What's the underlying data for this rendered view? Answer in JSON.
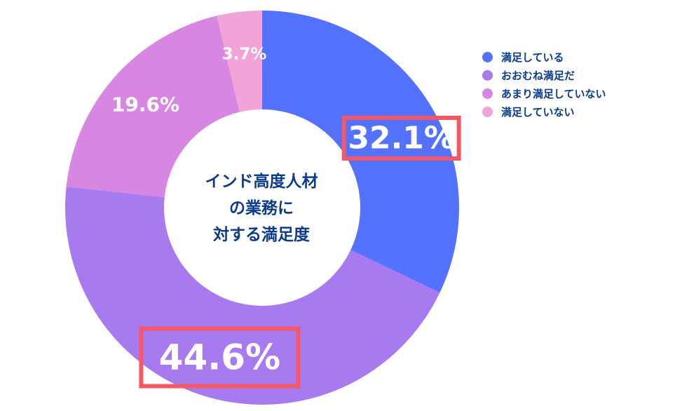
{
  "chart_data": {
    "type": "pie",
    "variant": "donut",
    "center_title": [
      "インド高度人材",
      "の業務に",
      "対する満足度"
    ],
    "slices": [
      {
        "label": "満足している",
        "value": 32.1,
        "value_label": "32.1%",
        "color": "#5272ff",
        "highlighted": true
      },
      {
        "label": "おおむね満足だ",
        "value": 44.6,
        "value_label": "44.6%",
        "color": "#a77aef",
        "highlighted": true
      },
      {
        "label": "あまり満足していない",
        "value": 19.6,
        "value_label": "19.6%",
        "color": "#d787e2",
        "highlighted": false
      },
      {
        "label": "満足していない",
        "value": 3.7,
        "value_label": "3.7%",
        "color": "#f2a3d7",
        "highlighted": false
      }
    ],
    "legend_position": "top-right",
    "highlight_color": "#f45766"
  }
}
